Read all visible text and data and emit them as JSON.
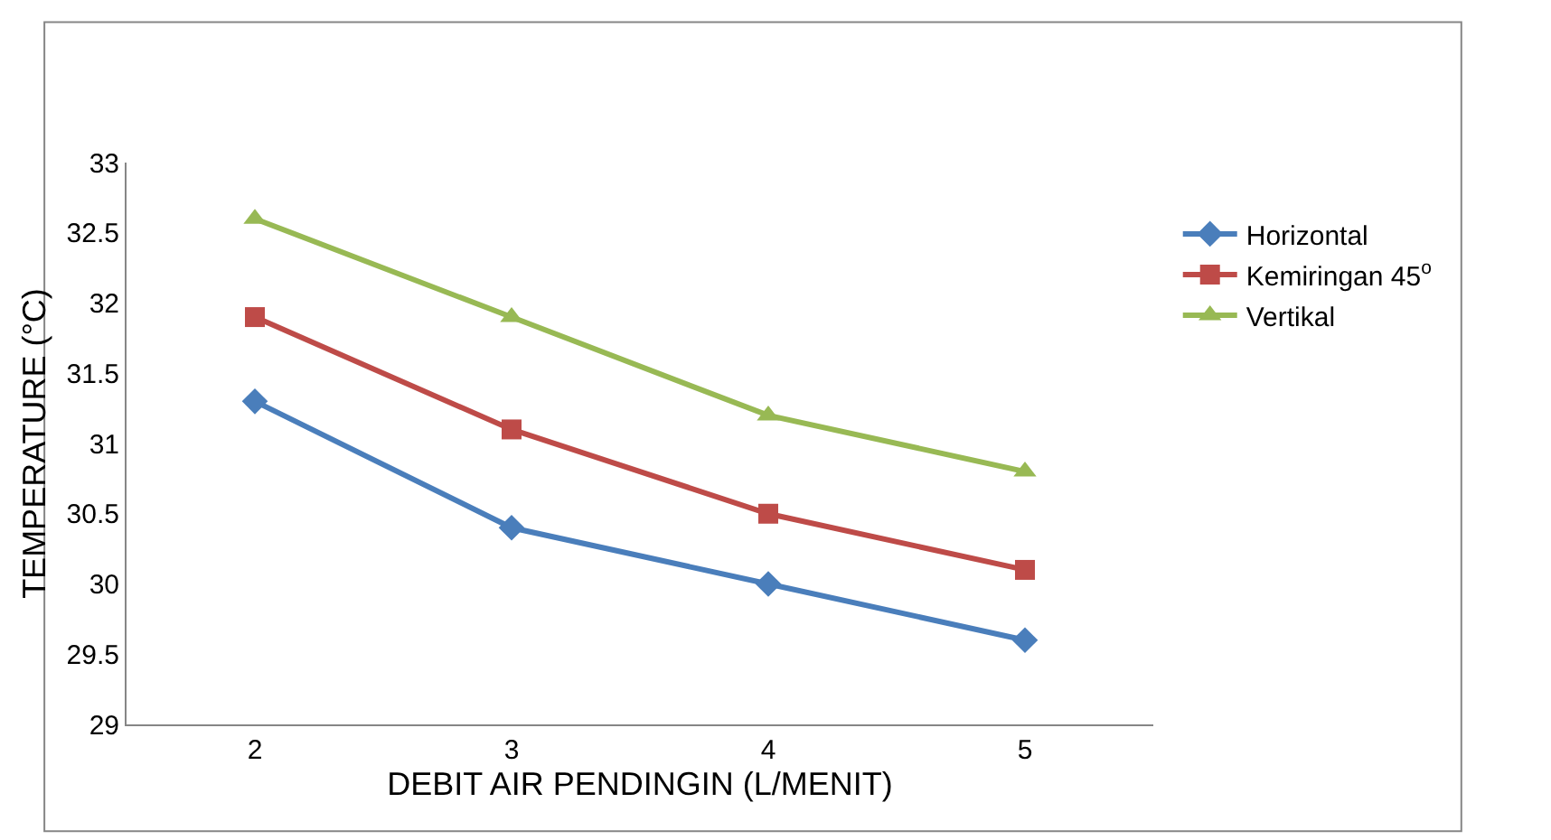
{
  "chart_data": {
    "type": "line",
    "xlabel": "DEBIT AIR PENDINGIN (L/MENIT)",
    "ylabel": "TEMPERATURE (°C)",
    "categories": [
      "2",
      "3",
      "4",
      "5"
    ],
    "series": [
      {
        "name": "Horizontal",
        "color": "#4a7ebb",
        "marker": "diamond",
        "values": [
          31.3,
          30.4,
          30.0,
          29.6
        ]
      },
      {
        "name": "Kemiringan 45$^{o}$",
        "color": "#be4b48",
        "marker": "square",
        "values": [
          31.9,
          31.1,
          30.5,
          30.1
        ]
      },
      {
        "name": "Vertikal",
        "color": "#98b954",
        "marker": "triangle",
        "values": [
          32.6,
          31.9,
          31.2,
          30.8
        ]
      }
    ],
    "ylim": [
      29,
      33
    ],
    "yticks": [
      29,
      29.5,
      30,
      30.5,
      31,
      31.5,
      32,
      32.5,
      33
    ],
    "legend": "right"
  }
}
